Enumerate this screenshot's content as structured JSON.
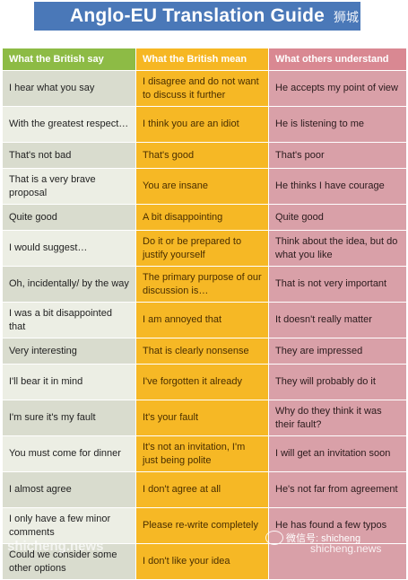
{
  "title": "Anglo-EU Translation Guide",
  "title_mark": "狮城",
  "headers": [
    "What the British say",
    "What the British mean",
    "What others understand"
  ],
  "rows": [
    {
      "say": "I hear what you say",
      "mean": "I disagree and do not want to discuss it further",
      "understand": "He accepts my point of view"
    },
    {
      "say": "With the greatest respect…",
      "mean": "I think you are an idiot",
      "understand": "He is listening to me"
    },
    {
      "say": "That's not bad",
      "mean": "That's good",
      "understand": "That's poor"
    },
    {
      "say": "That is a very brave proposal",
      "mean": "You are insane",
      "understand": "He thinks I have courage"
    },
    {
      "say": "Quite good",
      "mean": "A bit disappointing",
      "understand": "Quite good"
    },
    {
      "say": "I would suggest…",
      "mean": "Do it or be prepared to justify yourself",
      "understand": "Think about the idea, but do what you like"
    },
    {
      "say": "Oh, incidentally/ by the way",
      "mean": "The primary purpose of our discussion is…",
      "understand": "That is not very important"
    },
    {
      "say": "I was a bit disappointed that",
      "mean": "I am annoyed that",
      "understand": "It doesn't really matter"
    },
    {
      "say": "Very interesting",
      "mean": "That is clearly nonsense",
      "understand": "They are impressed"
    },
    {
      "say": "I'll bear it in mind",
      "mean": "I've forgotten it already",
      "understand": "They will probably do it"
    },
    {
      "say": "I'm sure it's my fault",
      "mean": "It's your fault",
      "understand": "Why do they think it was their fault?"
    },
    {
      "say": "You must come for dinner",
      "mean": "It's not an invitation, I'm just being polite",
      "understand": "I will get an invitation soon"
    },
    {
      "say": "I almost agree",
      "mean": "I don't agree at all",
      "understand": "He's not far from agreement"
    },
    {
      "say": "I only have a few minor comments",
      "mean": "Please re-write completely",
      "understand": "He has found a few typos"
    },
    {
      "say": "Could we consider some other options",
      "mean": "I don't like your idea",
      "understand": ""
    }
  ],
  "watermark": "shicheng.news",
  "watermark_badge": "微信号: shicheng",
  "watermark_site": "shicheng.news"
}
